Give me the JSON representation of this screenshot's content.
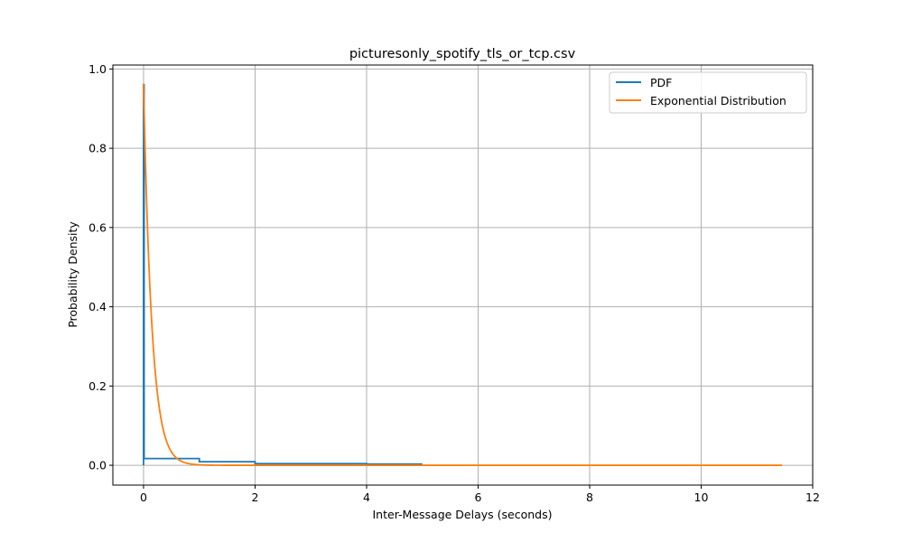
{
  "chart_data": {
    "type": "line",
    "title": "picturesonly_spotify_tls_or_tcp.csv",
    "xlabel": "Inter-Message Delays (seconds)",
    "ylabel": "Probability Density",
    "xlim": [
      -0.55,
      12.0
    ],
    "ylim": [
      -0.05,
      1.01
    ],
    "xticks": [
      0,
      2,
      4,
      6,
      8,
      10,
      12
    ],
    "yticks": [
      0.0,
      0.2,
      0.4,
      0.6,
      0.8,
      1.0
    ],
    "xtick_labels": [
      "0",
      "2",
      "4",
      "6",
      "8",
      "10",
      "12"
    ],
    "ytick_labels": [
      "0.0",
      "0.2",
      "0.4",
      "0.6",
      "0.8",
      "1.0"
    ],
    "grid": true,
    "legend_position": "top-right",
    "series": [
      {
        "name": "PDF",
        "color": "#1f77b4",
        "style": "step",
        "x": [
          0,
          0,
          0.01,
          1,
          2,
          4,
          5
        ],
        "y": [
          0.0,
          0.96,
          0.017,
          0.009,
          0.004,
          0.003,
          0.003
        ]
      },
      {
        "name": "Exponential Distribution",
        "color": "#ff7f0e",
        "style": "exponential",
        "x_start": 0,
        "x_end": 11.45,
        "peak": 0.963,
        "rate": 0.963
      }
    ]
  }
}
